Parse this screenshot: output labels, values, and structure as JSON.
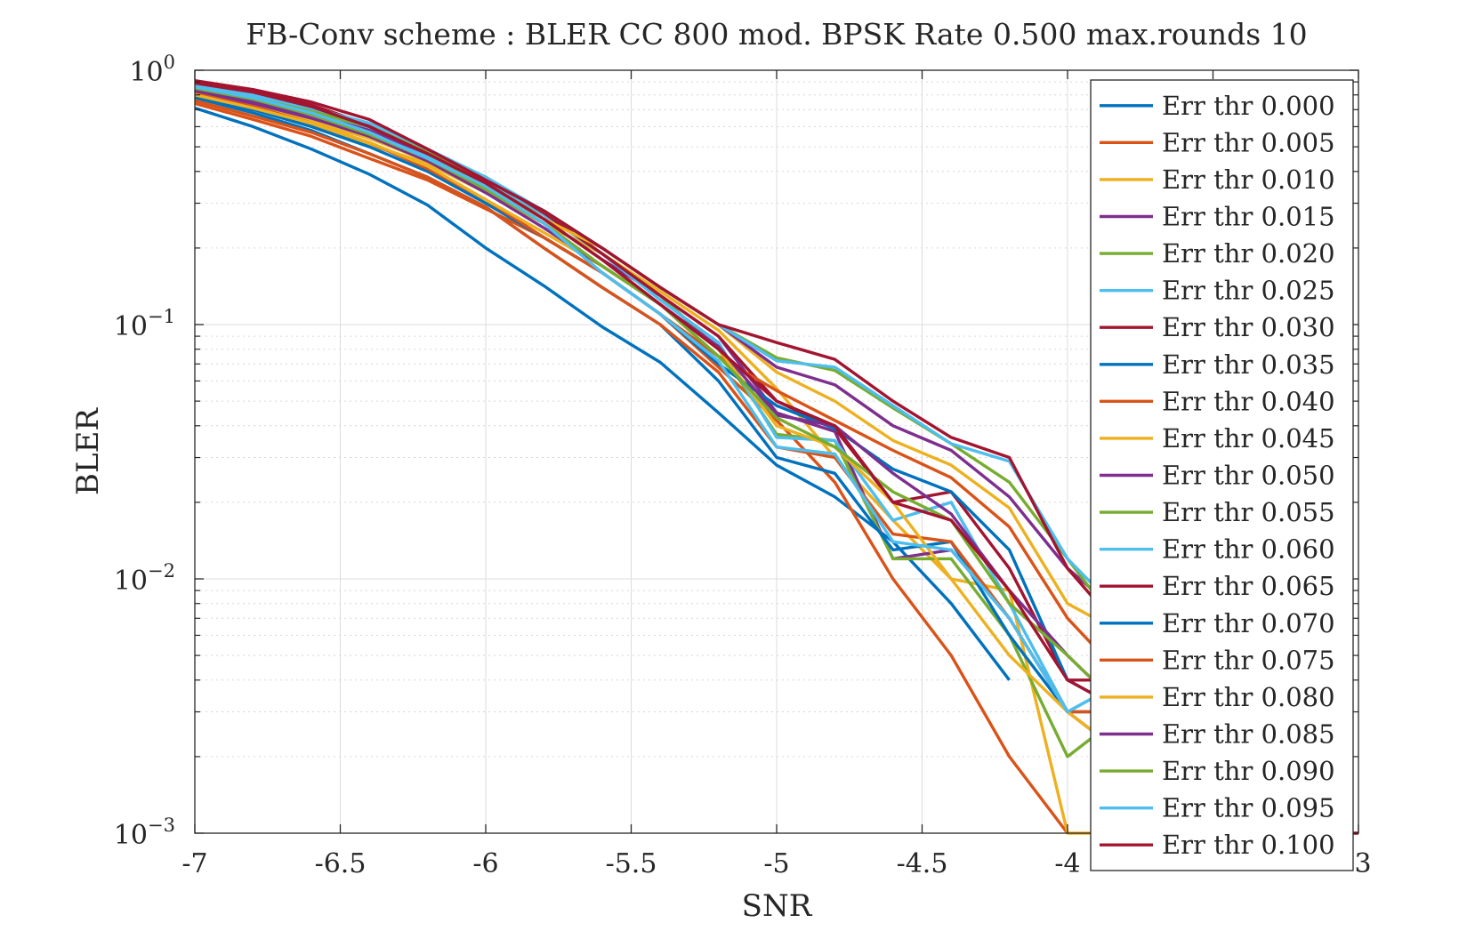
{
  "chart_data": {
    "type": "line",
    "title": "FB-Conv scheme : BLER CC 800 mod. BPSK Rate 0.500 max.rounds 10",
    "xlabel": "SNR",
    "ylabel": "BLER",
    "xlim": [
      -7,
      -3
    ],
    "ylim": [
      0.001,
      1
    ],
    "yscale": "log",
    "grid": true,
    "minor_grid": true,
    "legend_position": "right, inside plot area",
    "x_ticks": [
      "-7",
      "-6.5",
      "-6",
      "-5.5",
      "-5",
      "-4.5",
      "-4",
      "-3"
    ],
    "y_ticks": [
      {
        "base": "10",
        "exp": "0",
        "value": 1
      },
      {
        "base": "10",
        "exp": "−1",
        "value": 0.1
      },
      {
        "base": "10",
        "exp": "−2",
        "value": 0.01
      },
      {
        "base": "10",
        "exp": "−3",
        "value": 0.001
      }
    ],
    "x": [
      -7,
      -6.8,
      -6.6,
      -6.4,
      -6.2,
      -6,
      -5.8,
      -5.6,
      -5.4,
      -5.2,
      -5,
      -4.8,
      -4.6,
      -4.4,
      -4.2,
      -4,
      -3.8,
      -3.6,
      -3.4,
      -3.2,
      -3
    ],
    "series": [
      {
        "name": "Err thr 0.000",
        "color": "#0072BD",
        "values": [
          0.71,
          0.6,
          0.49,
          0.39,
          0.295,
          0.2,
          0.142,
          0.098,
          0.071,
          0.045,
          0.028,
          0.021,
          0.014,
          0.008,
          0.004,
          null,
          null,
          null,
          null,
          null,
          null
        ]
      },
      {
        "name": "Err thr 0.005",
        "color": "#D95319",
        "values": [
          0.74,
          0.64,
          0.55,
          0.45,
          0.37,
          0.285,
          0.22,
          0.16,
          0.11,
          0.068,
          0.042,
          0.024,
          0.01,
          0.005,
          0.002,
          0.001,
          null,
          null,
          null,
          null,
          null
        ]
      },
      {
        "name": "Err thr 0.010",
        "color": "#EDB120",
        "values": [
          0.79,
          0.71,
          0.61,
          0.51,
          0.43,
          0.33,
          0.25,
          0.19,
          0.135,
          0.095,
          0.056,
          0.03,
          0.017,
          0.01,
          0.009,
          0.001,
          0.001,
          null,
          null,
          null,
          null
        ]
      },
      {
        "name": "Err thr 0.015",
        "color": "#7E2F8E",
        "values": [
          0.82,
          0.74,
          0.64,
          0.54,
          0.45,
          0.35,
          0.26,
          0.18,
          0.13,
          0.09,
          0.045,
          0.038,
          0.012,
          0.013,
          0.007,
          0.003,
          0.002,
          null,
          null,
          null,
          null
        ]
      },
      {
        "name": "Err thr 0.020",
        "color": "#77AC30",
        "values": [
          0.85,
          0.78,
          0.68,
          0.57,
          0.46,
          0.36,
          0.27,
          0.19,
          0.13,
          0.08,
          0.037,
          0.035,
          0.012,
          0.012,
          0.006,
          0.002,
          0.003,
          null,
          null,
          null,
          null
        ]
      },
      {
        "name": "Err thr 0.025",
        "color": "#4DBEEE",
        "values": [
          0.87,
          0.8,
          0.7,
          0.59,
          0.46,
          0.37,
          0.27,
          0.19,
          0.125,
          0.085,
          0.036,
          0.035,
          0.017,
          0.02,
          0.008,
          0.003,
          0.004,
          null,
          null,
          null,
          null
        ]
      },
      {
        "name": "Err thr 0.030",
        "color": "#A2142F",
        "values": [
          0.9,
          0.83,
          0.73,
          0.61,
          0.47,
          0.38,
          0.275,
          0.19,
          0.13,
          0.09,
          0.05,
          0.039,
          0.02,
          0.022,
          0.011,
          0.004,
          0.004,
          null,
          null,
          null,
          null
        ]
      },
      {
        "name": "Err thr 0.035",
        "color": "#0072BD",
        "values": [
          0.78,
          0.68,
          0.58,
          0.47,
          0.38,
          0.29,
          0.2,
          0.14,
          0.1,
          0.06,
          0.03,
          0.026,
          0.013,
          0.014,
          0.006,
          0.003,
          0.003,
          null,
          null,
          null,
          null
        ]
      },
      {
        "name": "Err thr 0.040",
        "color": "#D95319",
        "values": [
          0.76,
          0.66,
          0.57,
          0.47,
          0.38,
          0.29,
          0.2,
          0.14,
          0.1,
          0.065,
          0.033,
          0.03,
          0.015,
          0.014,
          0.007,
          0.003,
          0.003,
          null,
          null,
          null,
          null
        ]
      },
      {
        "name": "Err thr 0.045",
        "color": "#EDB120",
        "values": [
          0.8,
          0.72,
          0.63,
          0.54,
          0.44,
          0.35,
          0.26,
          0.2,
          0.14,
          0.1,
          0.065,
          0.05,
          0.035,
          0.028,
          0.019,
          0.008,
          0.006,
          null,
          null,
          null,
          null
        ]
      },
      {
        "name": "Err thr 0.050",
        "color": "#7E2F8E",
        "values": [
          0.84,
          0.76,
          0.67,
          0.58,
          0.47,
          0.37,
          0.28,
          0.2,
          0.14,
          0.1,
          0.068,
          0.058,
          0.04,
          0.032,
          0.021,
          0.011,
          0.007,
          null,
          null,
          null,
          null
        ]
      },
      {
        "name": "Err thr 0.055",
        "color": "#77AC30",
        "values": [
          0.86,
          0.78,
          0.69,
          0.6,
          0.48,
          0.37,
          0.28,
          0.2,
          0.14,
          0.1,
          0.074,
          0.066,
          0.047,
          0.034,
          0.024,
          0.012,
          0.006,
          null,
          null,
          null,
          null
        ]
      },
      {
        "name": "Err thr 0.060",
        "color": "#4DBEEE",
        "values": [
          0.88,
          0.8,
          0.71,
          0.62,
          0.49,
          0.38,
          0.28,
          0.2,
          0.14,
          0.1,
          0.072,
          0.068,
          0.048,
          0.034,
          0.029,
          0.012,
          0.007,
          null,
          null,
          null,
          null
        ]
      },
      {
        "name": "Err thr 0.065",
        "color": "#A2142F",
        "values": [
          0.91,
          0.84,
          0.75,
          0.64,
          0.49,
          0.37,
          0.28,
          0.2,
          0.14,
          0.1,
          0.085,
          0.073,
          0.05,
          0.036,
          0.03,
          0.011,
          0.006,
          null,
          null,
          null,
          null
        ]
      },
      {
        "name": "Err thr 0.070",
        "color": "#0072BD",
        "values": [
          0.79,
          0.7,
          0.6,
          0.5,
          0.4,
          0.3,
          0.22,
          0.16,
          0.11,
          0.07,
          0.048,
          0.039,
          0.027,
          0.022,
          0.013,
          0.004,
          0.003,
          null,
          null,
          null,
          null
        ]
      },
      {
        "name": "Err thr 0.075",
        "color": "#D95319",
        "values": [
          0.81,
          0.72,
          0.62,
          0.52,
          0.41,
          0.31,
          0.22,
          0.16,
          0.11,
          0.075,
          0.055,
          0.042,
          0.032,
          0.025,
          0.016,
          0.007,
          0.004,
          null,
          null,
          null,
          null
        ]
      },
      {
        "name": "Err thr 0.080",
        "color": "#EDB120",
        "values": [
          0.8,
          0.71,
          0.62,
          0.52,
          0.42,
          0.31,
          0.23,
          0.17,
          0.12,
          0.08,
          0.04,
          0.033,
          0.02,
          0.01,
          0.005,
          0.003,
          0.002,
          null,
          null,
          null,
          null
        ]
      },
      {
        "name": "Err thr 0.085",
        "color": "#7E2F8E",
        "values": [
          0.83,
          0.75,
          0.65,
          0.55,
          0.44,
          0.33,
          0.24,
          0.17,
          0.12,
          0.082,
          0.044,
          0.04,
          0.026,
          0.018,
          0.009,
          0.005,
          0.003,
          null,
          null,
          null,
          null
        ]
      },
      {
        "name": "Err thr 0.090",
        "color": "#77AC30",
        "values": [
          0.85,
          0.77,
          0.67,
          0.56,
          0.45,
          0.34,
          0.25,
          0.17,
          0.12,
          0.075,
          0.043,
          0.033,
          0.022,
          0.017,
          0.008,
          0.005,
          0.003,
          null,
          null,
          null,
          null
        ]
      },
      {
        "name": "Err thr 0.095",
        "color": "#4DBEEE",
        "values": [
          0.86,
          0.78,
          0.68,
          0.57,
          0.45,
          0.35,
          0.25,
          0.16,
          0.11,
          0.072,
          0.033,
          0.031,
          0.014,
          0.013,
          0.007,
          0.003,
          0.004,
          null,
          null,
          null,
          null
        ]
      },
      {
        "name": "Err thr 0.100",
        "color": "#A2142F",
        "values": [
          0.89,
          0.82,
          0.72,
          0.6,
          0.47,
          0.36,
          0.26,
          0.18,
          0.12,
          0.08,
          0.05,
          0.04,
          0.02,
          0.017,
          0.009,
          0.004,
          0.003,
          0.002,
          0.0015,
          0.001,
          0.001
        ]
      }
    ]
  }
}
